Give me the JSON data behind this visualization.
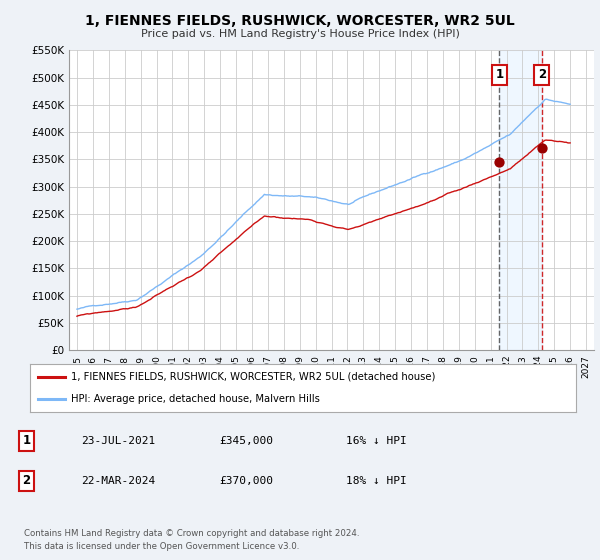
{
  "title": "1, FIENNES FIELDS, RUSHWICK, WORCESTER, WR2 5UL",
  "subtitle": "Price paid vs. HM Land Registry's House Price Index (HPI)",
  "background_color": "#eef2f7",
  "plot_bg_color": "#ffffff",
  "grid_color": "#cccccc",
  "xlim": [
    1994.5,
    2027.5
  ],
  "ylim": [
    0,
    550000
  ],
  "yticks": [
    0,
    50000,
    100000,
    150000,
    200000,
    250000,
    300000,
    350000,
    400000,
    450000,
    500000,
    550000
  ],
  "ytick_labels": [
    "£0",
    "£50K",
    "£100K",
    "£150K",
    "£200K",
    "£250K",
    "£300K",
    "£350K",
    "£400K",
    "£450K",
    "£500K",
    "£550K"
  ],
  "xticks": [
    1995,
    1996,
    1997,
    1998,
    1999,
    2000,
    2001,
    2002,
    2003,
    2004,
    2005,
    2006,
    2007,
    2008,
    2009,
    2010,
    2011,
    2012,
    2013,
    2014,
    2015,
    2016,
    2017,
    2018,
    2019,
    2020,
    2021,
    2022,
    2023,
    2024,
    2025,
    2026,
    2027
  ],
  "hpi_color": "#7eb8f7",
  "price_color": "#cc1111",
  "marker_color": "#990000",
  "sale1_x": 2021.55,
  "sale1_y": 345000,
  "sale2_x": 2024.22,
  "sale2_y": 370000,
  "vline1_x": 2021.55,
  "vline2_x": 2024.22,
  "vline1_color": "#555555",
  "vline2_color": "#cc1111",
  "shade_color": "#ddeeff",
  "shade_alpha": 0.45,
  "legend_line1": "1, FIENNES FIELDS, RUSHWICK, WORCESTER, WR2 5UL (detached house)",
  "legend_line2": "HPI: Average price, detached house, Malvern Hills",
  "table_row1_num": "1",
  "table_row1_date": "23-JUL-2021",
  "table_row1_price": "£345,000",
  "table_row1_hpi": "16% ↓ HPI",
  "table_row2_num": "2",
  "table_row2_date": "22-MAR-2024",
  "table_row2_price": "£370,000",
  "table_row2_hpi": "18% ↓ HPI",
  "footer1": "Contains HM Land Registry data © Crown copyright and database right 2024.",
  "footer2": "This data is licensed under the Open Government Licence v3.0."
}
